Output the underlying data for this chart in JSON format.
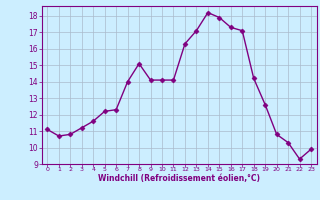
{
  "x": [
    0,
    1,
    2,
    3,
    4,
    5,
    6,
    7,
    8,
    9,
    10,
    11,
    12,
    13,
    14,
    15,
    16,
    17,
    18,
    19,
    20,
    21,
    22,
    23
  ],
  "y": [
    11.1,
    10.7,
    10.8,
    11.2,
    11.6,
    12.2,
    12.3,
    14.0,
    15.1,
    14.1,
    14.1,
    14.1,
    16.3,
    17.1,
    18.2,
    17.9,
    17.3,
    17.1,
    14.2,
    12.6,
    10.8,
    10.3,
    9.3,
    9.9
  ],
  "line_color": "#800080",
  "marker": "D",
  "markersize": 2.5,
  "linewidth": 1.0,
  "bg_color": "#cceeff",
  "grid_color": "#aabbcc",
  "xlabel": "Windchill (Refroidissement éolien,°C)",
  "xlabel_color": "#800080",
  "tick_color": "#800080",
  "ylim": [
    9,
    18.6
  ],
  "xlim": [
    -0.5,
    23.5
  ],
  "yticks": [
    9,
    10,
    11,
    12,
    13,
    14,
    15,
    16,
    17,
    18
  ],
  "xticks": [
    0,
    1,
    2,
    3,
    4,
    5,
    6,
    7,
    8,
    9,
    10,
    11,
    12,
    13,
    14,
    15,
    16,
    17,
    18,
    19,
    20,
    21,
    22,
    23
  ],
  "title_color": "#800080",
  "title_fontsize": 6
}
